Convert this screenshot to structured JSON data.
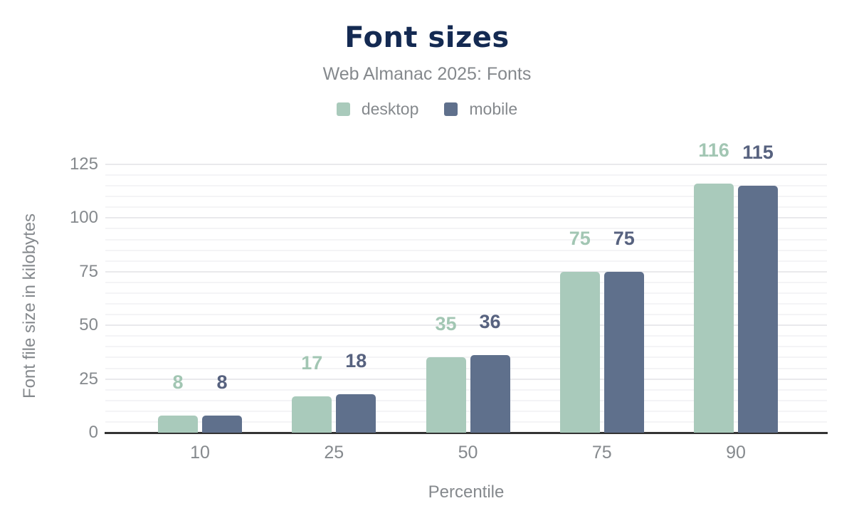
{
  "chart": {
    "title": "Font sizes",
    "subtitle": "Web Almanac 2025: Fonts",
    "xlabel": "Percentile",
    "ylabel": "Font file size in kilobytes"
  },
  "chart_data": {
    "type": "bar",
    "title": "Font sizes",
    "subtitle": "Web Almanac 2025: Fonts",
    "categories": [
      "10",
      "25",
      "50",
      "75",
      "90"
    ],
    "series": [
      {
        "name": "desktop",
        "color": "#a9cabb",
        "label_color": "#a2c6b3",
        "values": [
          8,
          17,
          35,
          75,
          116
        ]
      },
      {
        "name": "mobile",
        "color": "#5f708c",
        "label_color": "#57627f",
        "values": [
          8,
          18,
          36,
          75,
          115
        ]
      }
    ],
    "xlabel": "Percentile",
    "ylabel": "Font file size in kilobytes",
    "ylim": [
      0,
      125
    ],
    "yticks": [
      0,
      25,
      50,
      75,
      100,
      125
    ],
    "minor_grid_step": 5,
    "major_grid_step": 25,
    "grid": true,
    "legend_position": "top",
    "data_labels": true
  },
  "colors": {
    "title_text": "#142a52",
    "muted_text": "#85898d",
    "axis_line": "#333333",
    "grid_major": "#e9e9ec",
    "grid_minor": "#f4f4f6",
    "background": "#ffffff"
  }
}
